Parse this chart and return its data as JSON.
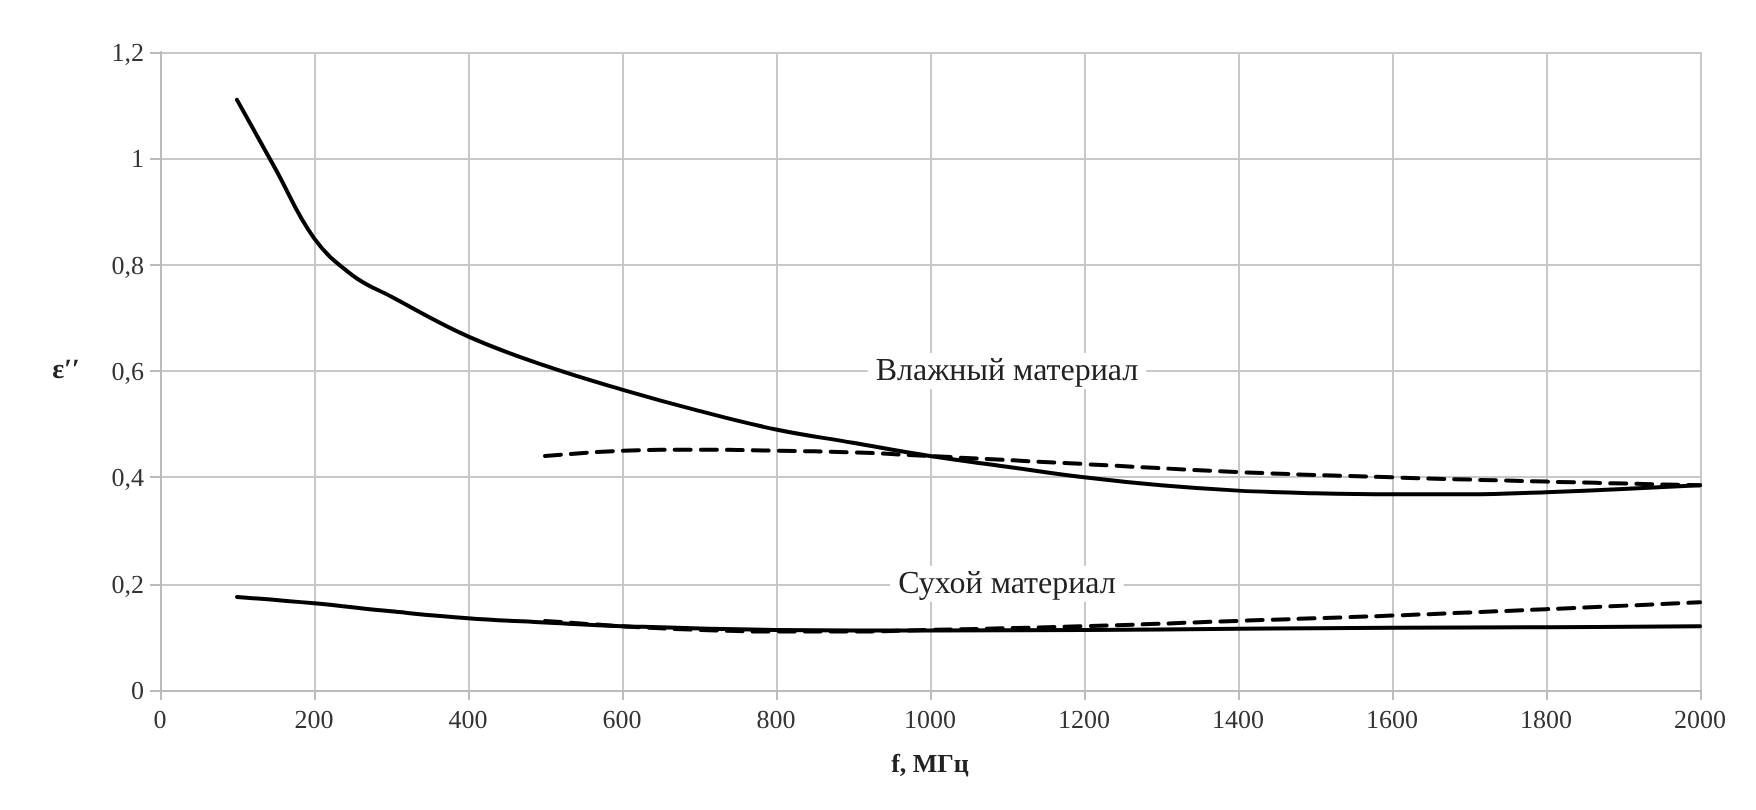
{
  "chart_data": {
    "type": "line",
    "xlabel": "f, МГц",
    "ylabel": "ε′′",
    "xlim": [
      0,
      2000
    ],
    "xticks": [
      0,
      200,
      400,
      600,
      800,
      1000,
      1200,
      1400,
      1600,
      1800,
      2000
    ],
    "ylim": [
      0,
      1.2
    ],
    "yticks": [
      0,
      {
        "value": 0.2,
        "label": "0,2"
      },
      {
        "value": 0.4,
        "label": "0,4"
      },
      {
        "value": 0.6,
        "label": "0,6"
      },
      {
        "value": 0.8,
        "label": "0,8"
      },
      1,
      {
        "value": 1.2,
        "label": "1,2"
      }
    ],
    "grid": true,
    "marker": "none",
    "annotations": [
      "Влажный материал",
      "Сухой материал"
    ],
    "series": [
      {
        "color": "#000000",
        "line_style": "solid",
        "x": [
          100,
          150,
          200,
          250,
          300,
          400,
          500,
          600,
          700,
          800,
          900,
          1000,
          1100,
          1200,
          1300,
          1400,
          1500,
          1600,
          1700,
          1800,
          1900,
          2000
        ],
        "values": [
          1.11,
          0.98,
          0.85,
          0.78,
          0.74,
          0.665,
          0.61,
          0.565,
          0.525,
          0.49,
          0.465,
          0.44,
          0.42,
          0.4,
          0.385,
          0.375,
          0.37,
          0.368,
          0.368,
          0.372,
          0.378,
          0.385
        ]
      },
      {
        "color": "#000000",
        "line_style": "dashed",
        "x": [
          500,
          600,
          700,
          800,
          900,
          1000,
          1200,
          1400,
          1600,
          1800,
          2000
        ],
        "values": [
          0.44,
          0.45,
          0.452,
          0.45,
          0.447,
          0.44,
          0.425,
          0.41,
          0.4,
          0.392,
          0.385
        ]
      },
      {
        "color": "#000000",
        "line_style": "solid",
        "x": [
          100,
          200,
          300,
          400,
          500,
          600,
          800,
          1000,
          1200,
          1400,
          1600,
          1800,
          2000
        ],
        "values": [
          0.175,
          0.163,
          0.148,
          0.135,
          0.127,
          0.12,
          0.113,
          0.112,
          0.113,
          0.115,
          0.117,
          0.118,
          0.12
        ]
      },
      {
        "color": "#000000",
        "line_style": "dashed",
        "x": [
          500,
          600,
          700,
          800,
          900,
          1000,
          1200,
          1400,
          1600,
          1800,
          2000
        ],
        "values": [
          0.13,
          0.12,
          0.113,
          0.11,
          0.11,
          0.113,
          0.12,
          0.13,
          0.14,
          0.152,
          0.165
        ]
      }
    ]
  }
}
